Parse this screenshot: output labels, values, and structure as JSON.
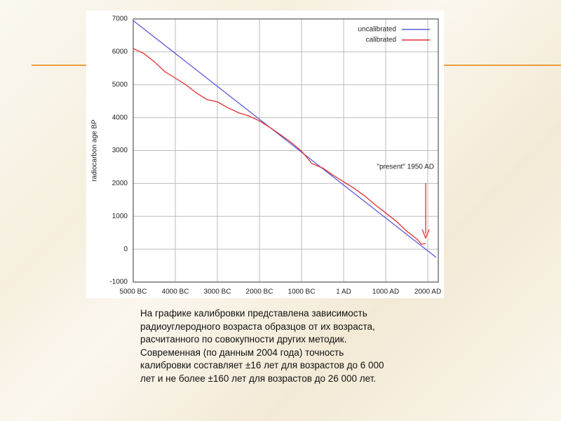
{
  "chart_data": {
    "type": "line",
    "ylabel": "radiocarbon age BP",
    "annotation": "\"present\" 1950 AD",
    "xlim": [
      -5000,
      2250
    ],
    "ylim": [
      -1000,
      7000
    ],
    "xticks": [
      {
        "value": -5000,
        "label": "5000 BC"
      },
      {
        "value": -4000,
        "label": "4000 BC"
      },
      {
        "value": -3000,
        "label": "3000 BC"
      },
      {
        "value": -2000,
        "label": "2000 BC"
      },
      {
        "value": -1000,
        "label": "1000 BC"
      },
      {
        "value": 1,
        "label": "1 AD"
      },
      {
        "value": 1000,
        "label": "1000 AD"
      },
      {
        "value": 2000,
        "label": "2000 AD"
      }
    ],
    "yticks": [
      -1000,
      0,
      1000,
      2000,
      3000,
      4000,
      5000,
      6000,
      7000
    ],
    "grid": true,
    "legend": "top-right",
    "series": [
      {
        "name": "uncalibrated",
        "color": "#5b5bdc",
        "x": [
          -5000,
          2200
        ],
        "values": [
          6950,
          -250
        ]
      },
      {
        "name": "calibrated",
        "color": "#e03030",
        "x": [
          -5000,
          -4750,
          -4500,
          -4250,
          -4000,
          -3750,
          -3500,
          -3250,
          -3000,
          -2750,
          -2500,
          -2250,
          -2000,
          -1750,
          -1500,
          -1250,
          -1000,
          -750,
          -500,
          -250,
          1,
          250,
          500,
          750,
          1000,
          1250,
          1500,
          1750,
          1850,
          1950
        ],
        "values": [
          6100,
          5950,
          5700,
          5400,
          5200,
          5000,
          4750,
          4550,
          4480,
          4300,
          4150,
          4050,
          3900,
          3700,
          3480,
          3250,
          2980,
          2600,
          2470,
          2250,
          2050,
          1850,
          1620,
          1350,
          1100,
          850,
          550,
          300,
          150,
          170
        ]
      }
    ]
  },
  "caption": {
    "lines": [
      "На графике калибровки представлена зависимость",
      "радиоуглеродного возраста образцов от их возраста,",
      "расчитанного по совокупности других методик.",
      "Современная (по данным 2004 года) точность",
      "калибровки составляет ±16 лет для возрастов до 6 000",
      "лет и не более ±160 лет для возрастов до 26 000 лет."
    ]
  }
}
